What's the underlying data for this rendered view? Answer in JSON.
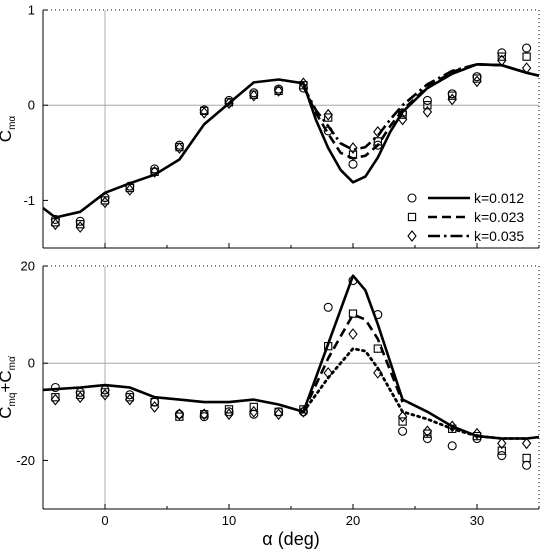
{
  "chart_data": [
    {
      "type": "line",
      "ylabel": {
        "base": "C",
        "sub": "mα"
      },
      "xlim": [
        -5,
        35
      ],
      "ylim": [
        -1.5,
        1
      ],
      "yticks": [
        {
          "v": -1,
          "label": "-1"
        },
        {
          "v": 0,
          "label": "0"
        },
        {
          "v": 1,
          "label": "1"
        }
      ],
      "grid": false,
      "reference_lines": [
        {
          "axis": "y",
          "value": 0
        },
        {
          "axis": "x",
          "value": 0
        }
      ],
      "legend": {
        "position": "lower-right",
        "entries": [
          {
            "marker": "circle",
            "line": "solid",
            "label": "k=0.012"
          },
          {
            "marker": "square",
            "line": "dashed",
            "label": "k=0.023"
          },
          {
            "marker": "diamond",
            "line": "dashdot",
            "label": "k=0.035"
          }
        ]
      },
      "series": [
        {
          "name": "k=0.012",
          "kind": "line",
          "style": "solid",
          "x": [
            -5,
            -4,
            -2,
            0,
            2,
            4,
            6,
            8,
            10,
            12,
            14,
            16,
            17,
            18,
            19,
            20,
            21,
            22,
            23,
            24,
            26,
            28,
            30,
            32,
            34,
            35
          ],
          "y": [
            -1.08,
            -1.18,
            -1.12,
            -0.92,
            -0.82,
            -0.73,
            -0.57,
            -0.2,
            0.02,
            0.24,
            0.27,
            0.23,
            -0.15,
            -0.45,
            -0.68,
            -0.81,
            -0.75,
            -0.55,
            -0.28,
            -0.07,
            0.18,
            0.33,
            0.43,
            0.42,
            0.34,
            0.31
          ]
        },
        {
          "name": "k=0.023",
          "kind": "line",
          "style": "dashed",
          "x": [
            16,
            17,
            18,
            19,
            20,
            21,
            22,
            23,
            24,
            26,
            28,
            30,
            32,
            34
          ],
          "y": [
            0.2,
            -0.08,
            -0.3,
            -0.5,
            -0.56,
            -0.53,
            -0.42,
            -0.22,
            -0.05,
            0.19,
            0.35,
            0.43,
            0.42,
            0.34
          ]
        },
        {
          "name": "k=0.035",
          "kind": "line",
          "style": "dashdot",
          "x": [
            16,
            17,
            18,
            19,
            20,
            21,
            22,
            23,
            24,
            26,
            28,
            30,
            32,
            34
          ],
          "y": [
            0.2,
            -0.05,
            -0.22,
            -0.4,
            -0.47,
            -0.44,
            -0.32,
            -0.15,
            0.0,
            0.22,
            0.36,
            0.43,
            0.42,
            0.34
          ]
        },
        {
          "name": "k=0.012",
          "kind": "markers",
          "marker": "circle",
          "x": [
            -4,
            -2,
            0,
            2,
            4,
            6,
            8,
            10,
            12,
            14,
            16,
            18,
            20,
            22,
            24,
            26,
            28,
            30,
            32,
            34
          ],
          "y": [
            -1.2,
            -1.22,
            -0.97,
            -0.85,
            -0.67,
            -0.42,
            -0.05,
            0.05,
            0.13,
            0.17,
            0.18,
            -0.27,
            -0.62,
            -0.42,
            -0.08,
            0.05,
            0.12,
            0.3,
            0.55,
            0.6
          ]
        },
        {
          "name": "k=0.023",
          "kind": "markers",
          "marker": "square",
          "x": [
            -4,
            -2,
            0,
            2,
            4,
            6,
            8,
            10,
            12,
            14,
            16,
            18,
            20,
            22,
            24,
            26,
            28,
            30,
            32,
            34
          ],
          "y": [
            -1.23,
            -1.25,
            -1.0,
            -0.87,
            -0.7,
            -0.44,
            -0.06,
            0.03,
            0.11,
            0.15,
            0.21,
            -0.13,
            -0.52,
            -0.38,
            -0.1,
            0.0,
            0.1,
            0.28,
            0.51,
            0.51
          ]
        },
        {
          "name": "k=0.035",
          "kind": "markers",
          "marker": "diamond",
          "x": [
            -4,
            -2,
            0,
            2,
            4,
            6,
            8,
            10,
            12,
            14,
            16,
            18,
            20,
            22,
            24,
            26,
            28,
            30,
            32,
            34
          ],
          "y": [
            -1.25,
            -1.28,
            -1.02,
            -0.89,
            -0.7,
            -0.45,
            -0.08,
            0.02,
            0.1,
            0.15,
            0.23,
            -0.1,
            -0.45,
            -0.28,
            -0.15,
            -0.07,
            0.06,
            0.25,
            0.47,
            0.39
          ]
        }
      ]
    },
    {
      "type": "line",
      "xlabel": "α (deg)",
      "ylabel": {
        "base1": "C",
        "sub1": "mq",
        "mid": "+C",
        "sub2": "mα̇"
      },
      "xlim": [
        -5,
        35
      ],
      "ylim": [
        -30,
        20
      ],
      "xticks": [
        {
          "v": 0,
          "label": "0"
        },
        {
          "v": 10,
          "label": "10"
        },
        {
          "v": 20,
          "label": "20"
        },
        {
          "v": 30,
          "label": "30"
        }
      ],
      "yticks": [
        {
          "v": -20,
          "label": "-20"
        },
        {
          "v": 0,
          "label": "0"
        },
        {
          "v": 20,
          "label": "20"
        }
      ],
      "grid": false,
      "reference_lines": [
        {
          "axis": "y",
          "value": 0
        },
        {
          "axis": "x",
          "value": 0
        }
      ],
      "series": [
        {
          "name": "k=0.012",
          "kind": "line",
          "style": "solid",
          "x": [
            -5,
            -2,
            0,
            2,
            4,
            6,
            8,
            10,
            12,
            14,
            16,
            18,
            20,
            21,
            22,
            24,
            26,
            28,
            30,
            32,
            34,
            35
          ],
          "y": [
            -5.5,
            -5,
            -4.5,
            -5,
            -7,
            -7.5,
            -8,
            -8,
            -7.5,
            -8.5,
            -10,
            4,
            18,
            15,
            8,
            -7.5,
            -10,
            -13,
            -15,
            -15.5,
            -15.5,
            -15.2
          ]
        },
        {
          "name": "k=0.023",
          "kind": "line",
          "style": "dashed",
          "x": [
            16,
            18,
            20,
            21,
            22,
            24
          ],
          "y": [
            -10,
            1,
            10,
            9,
            5,
            -8
          ]
        },
        {
          "name": "k=0.035",
          "kind": "line",
          "style": "dotted",
          "x": [
            16,
            18,
            20,
            21,
            22,
            24,
            26,
            28,
            30,
            32,
            34
          ],
          "y": [
            -10,
            -3,
            3,
            2.5,
            -1,
            -10,
            -11.5,
            -13.5,
            -15,
            -15.5,
            -15.5
          ]
        },
        {
          "name": "k=0.012",
          "kind": "markers",
          "marker": "circle",
          "x": [
            -4,
            -2,
            0,
            2,
            4,
            6,
            8,
            10,
            12,
            14,
            16,
            18,
            20,
            22,
            24,
            26,
            28,
            30,
            32,
            34
          ],
          "y": [
            -5,
            -6,
            -5.5,
            -6.5,
            -8,
            -10.5,
            -11,
            -10,
            -10.5,
            -10,
            -10,
            11.5,
            17,
            10,
            -14,
            -15.5,
            -17,
            -15.5,
            -19,
            -21
          ]
        },
        {
          "name": "k=0.023",
          "kind": "markers",
          "marker": "square",
          "x": [
            -4,
            -2,
            0,
            2,
            4,
            6,
            8,
            10,
            12,
            14,
            16,
            18,
            20,
            22,
            24,
            26,
            28,
            30,
            32,
            34
          ],
          "y": [
            -7,
            -6.5,
            -6,
            -7,
            -8,
            -11,
            -10.5,
            -9.5,
            -9,
            -10,
            -9.5,
            3.5,
            10.2,
            3,
            -12,
            -14.5,
            -13.5,
            -15,
            -18,
            -19.5
          ]
        },
        {
          "name": "k=0.035",
          "kind": "markers",
          "marker": "diamond",
          "x": [
            -4,
            -2,
            0,
            2,
            4,
            6,
            8,
            10,
            12,
            14,
            16,
            18,
            20,
            22,
            24,
            26,
            28,
            30,
            32,
            34
          ],
          "y": [
            -7.5,
            -7,
            -6.5,
            -7.5,
            -9,
            -10.5,
            -10.5,
            -10.5,
            -10,
            -10.5,
            -10,
            -2,
            6,
            -2,
            -11,
            -14,
            -13,
            -14.5,
            -16.5,
            -16.5
          ]
        }
      ]
    }
  ]
}
